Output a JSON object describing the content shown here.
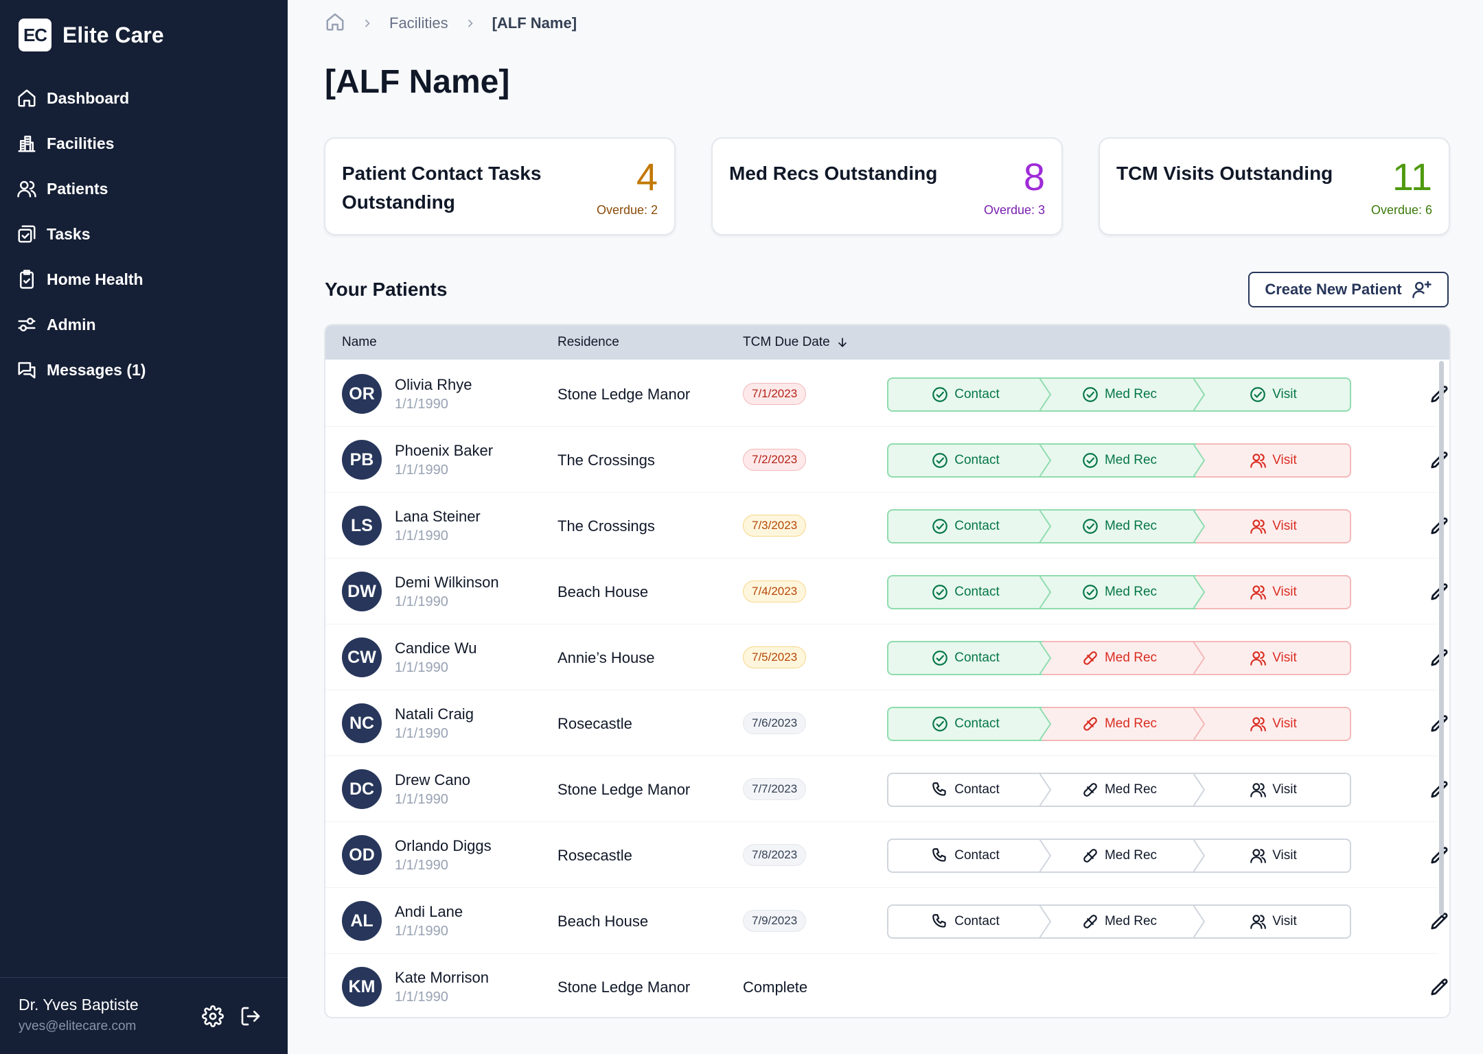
{
  "app": {
    "logo": "EC",
    "name": "Elite Care"
  },
  "sidebar": {
    "items": [
      {
        "label": "Dashboard",
        "icon": "home-icon"
      },
      {
        "label": "Facilities",
        "icon": "building-icon"
      },
      {
        "label": "Patients",
        "icon": "users-icon"
      },
      {
        "label": "Tasks",
        "icon": "tasks-icon"
      },
      {
        "label": "Home Health",
        "icon": "clipboard-check-icon"
      },
      {
        "label": "Admin",
        "icon": "sliders-icon"
      },
      {
        "label": "Messages (1)",
        "icon": "messages-icon"
      }
    ],
    "user": {
      "name": "Dr. Yves Baptiste",
      "email": "yves@elitecare.com"
    }
  },
  "breadcrumb": {
    "items": [
      "Facilities",
      "[ALF Name]"
    ]
  },
  "page": {
    "title": "[ALF Name]"
  },
  "stats": [
    {
      "title": "Patient Contact Tasks Outstanding",
      "value": "4",
      "overdue": "Overdue: 2",
      "color": "#c27803"
    },
    {
      "title": "Med Recs Outstanding",
      "value": "8",
      "overdue": "Overdue: 3",
      "color": "#9e2bd8"
    },
    {
      "title": "TCM Visits Outstanding",
      "value": "11",
      "overdue": "Overdue: 6",
      "color": "#4e9a0e"
    }
  ],
  "patients": {
    "title": "Your Patients",
    "create_label": "Create New Patient",
    "columns": {
      "name": "Name",
      "residence": "Residence",
      "due": "TCM Due Date"
    },
    "step_labels": [
      "Contact",
      "Med Rec",
      "Visit"
    ],
    "rows": [
      {
        "initials": "OR",
        "name": "Olivia Rhye",
        "dob": "1/1/1990",
        "residence": "Stone Ledge Manor",
        "due": "7/1/2023",
        "due_status": "red",
        "steps": [
          "done",
          "done",
          "done"
        ]
      },
      {
        "initials": "PB",
        "name": "Phoenix Baker",
        "dob": "1/1/1990",
        "residence": "The Crossings",
        "due": "7/2/2023",
        "due_status": "red",
        "steps": [
          "done",
          "done",
          "over"
        ]
      },
      {
        "initials": "LS",
        "name": "Lana Steiner",
        "dob": "1/1/1990",
        "residence": "The Crossings",
        "due": "7/3/2023",
        "due_status": "amber",
        "steps": [
          "done",
          "done",
          "over"
        ]
      },
      {
        "initials": "DW",
        "name": "Demi Wilkinson",
        "dob": "1/1/1990",
        "residence": "Beach House",
        "due": "7/4/2023",
        "due_status": "amber",
        "steps": [
          "done",
          "done",
          "over"
        ]
      },
      {
        "initials": "CW",
        "name": "Candice Wu",
        "dob": "1/1/1990",
        "residence": "Annie’s House",
        "due": "7/5/2023",
        "due_status": "amber",
        "steps": [
          "done",
          "over",
          "over"
        ]
      },
      {
        "initials": "NC",
        "name": "Natali Craig",
        "dob": "1/1/1990",
        "residence": "Rosecastle",
        "due": "7/6/2023",
        "due_status": "gray",
        "steps": [
          "done",
          "over",
          "over"
        ]
      },
      {
        "initials": "DC",
        "name": "Drew Cano",
        "dob": "1/1/1990",
        "residence": "Stone Ledge Manor",
        "due": "7/7/2023",
        "due_status": "gray",
        "steps": [
          "todo",
          "todo",
          "todo"
        ]
      },
      {
        "initials": "OD",
        "name": "Orlando Diggs",
        "dob": "1/1/1990",
        "residence": "Rosecastle",
        "due": "7/8/2023",
        "due_status": "gray",
        "steps": [
          "todo",
          "todo",
          "todo"
        ]
      },
      {
        "initials": "AL",
        "name": "Andi Lane",
        "dob": "1/1/1990",
        "residence": "Beach House",
        "due": "7/9/2023",
        "due_status": "gray",
        "steps": [
          "todo",
          "todo",
          "todo"
        ]
      },
      {
        "initials": "KM",
        "name": "Kate Morrison",
        "dob": "1/1/1990",
        "residence": "Stone Ledge Manor",
        "due": "Complete",
        "due_status": "complete",
        "steps": []
      }
    ]
  }
}
